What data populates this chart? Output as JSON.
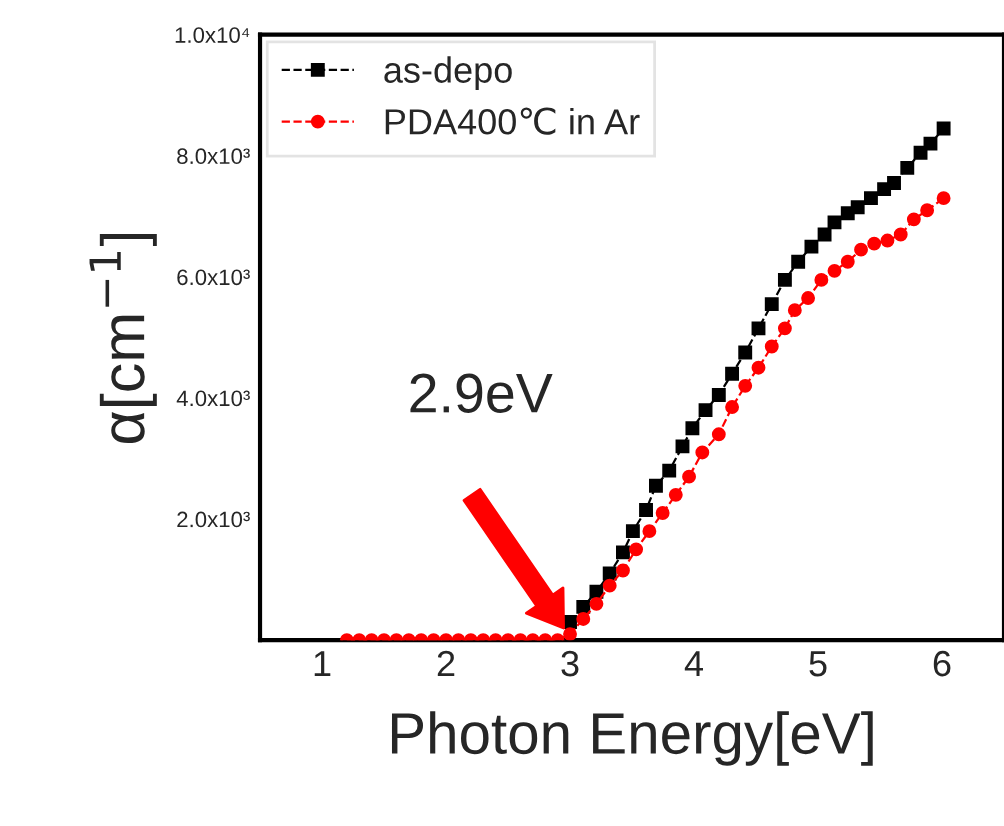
{
  "chart_data": {
    "type": "line",
    "xlabel": "Photon Energy[eV]",
    "ylabel": "α[cm$^{−1}$]",
    "xlim": [
      0.5,
      6.5
    ],
    "ylim": [
      0,
      10000
    ],
    "xticks": [
      1,
      2,
      3,
      4,
      5,
      6
    ],
    "yticks": [
      {
        "value": 2000,
        "label": "2.0x10³"
      },
      {
        "value": 4000,
        "label": "4.0x10³"
      },
      {
        "value": 6000,
        "label": "6.0x10³"
      },
      {
        "value": 8000,
        "label": "8.0x10³"
      },
      {
        "value": 10000,
        "label": "1.0x10⁴"
      }
    ],
    "grid": false,
    "legend": "top left",
    "line_style": "dashed",
    "annotations": [
      "2.9eV"
    ],
    "series": [
      {
        "name": "as-depo",
        "color": "#000000",
        "marker": "square",
        "x": [
          3.0,
          3.107,
          3.213,
          3.32,
          3.427,
          3.507,
          3.613,
          3.693,
          3.8,
          3.907,
          3.987,
          4.093,
          4.2,
          4.307,
          4.413,
          4.52,
          4.627,
          4.733,
          4.84,
          4.947,
          5.053,
          5.133,
          5.24,
          5.32,
          5.427,
          5.533,
          5.613,
          5.72,
          5.827,
          5.907,
          6.013
        ],
        "values": [
          300,
          550,
          800,
          1100,
          1450,
          1800,
          2150,
          2550,
          2800,
          3200,
          3500,
          3800,
          4050,
          4400,
          4750,
          5150,
          5550,
          5950,
          6250,
          6500,
          6700,
          6900,
          7050,
          7150,
          7300,
          7450,
          7550,
          7800,
          8050,
          8200,
          8450
        ]
      },
      {
        "name": "PDA400℃ in Ar",
        "color": "#ff0000",
        "marker": "circle",
        "x": [
          1.2,
          1.3,
          1.4,
          1.5,
          1.6,
          1.7,
          1.8,
          1.9,
          2.0,
          2.1,
          2.2,
          2.3,
          2.4,
          2.5,
          2.6,
          2.7,
          2.8,
          2.9,
          3.0,
          3.107,
          3.213,
          3.32,
          3.427,
          3.533,
          3.64,
          3.747,
          3.853,
          3.96,
          4.067,
          4.2,
          4.307,
          4.413,
          4.52,
          4.627,
          4.733,
          4.813,
          4.92,
          5.027,
          5.133,
          5.24,
          5.347,
          5.453,
          5.56,
          5.667,
          5.773,
          5.88,
          6.013
        ],
        "values": [
          0,
          0,
          0,
          0,
          0,
          0,
          0,
          0,
          0,
          0,
          0,
          0,
          0,
          0,
          0,
          0,
          0,
          0,
          100,
          350,
          600,
          900,
          1150,
          1500,
          1800,
          2100,
          2400,
          2700,
          3100,
          3400,
          3850,
          4200,
          4500,
          4850,
          5150,
          5450,
          5650,
          5950,
          6100,
          6250,
          6450,
          6550,
          6600,
          6700,
          6950,
          7100,
          7300
        ]
      }
    ]
  }
}
